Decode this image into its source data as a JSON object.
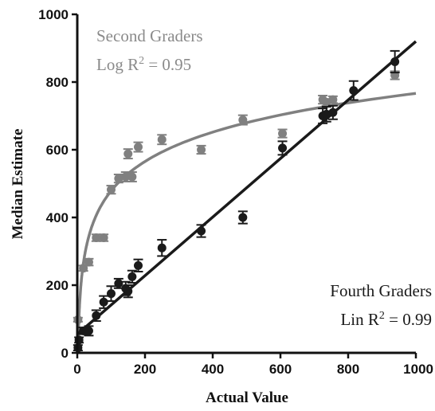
{
  "chart_data": {
    "type": "scatter",
    "title": "",
    "xlabel": "Actual Value",
    "ylabel": "Median Estimate",
    "xlim": [
      0,
      1000
    ],
    "ylim": [
      0,
      1000
    ],
    "x_ticks": [
      "0",
      "200",
      "400",
      "600",
      "800",
      "1000"
    ],
    "y_ticks": [
      "0",
      "200",
      "400",
      "600",
      "800",
      "1000"
    ],
    "grid": false,
    "annotations": {
      "second_title": "Second Graders",
      "second_fit_prefix": "Log R",
      "second_fit_sup": "2",
      "second_fit_value": " = 0.95",
      "fourth_title": "Fourth Graders",
      "fourth_fit_prefix": "Lin R",
      "fourth_fit_sup": "2",
      "fourth_fit_value": " = 0.99"
    },
    "series": [
      {
        "name": "Second Graders",
        "color": "#808080",
        "fit": "log",
        "fit_a": -97,
        "fit_b": 125,
        "points": [
          {
            "x": 2,
            "y": 98,
            "err": 6
          },
          {
            "x": 18,
            "y": 250,
            "err": 8
          },
          {
            "x": 34,
            "y": 268,
            "err": 10
          },
          {
            "x": 56,
            "y": 340,
            "err": 10
          },
          {
            "x": 78,
            "y": 340,
            "err": 10
          },
          {
            "x": 100,
            "y": 482,
            "err": 12
          },
          {
            "x": 122,
            "y": 515,
            "err": 12
          },
          {
            "x": 143,
            "y": 520,
            "err": 14
          },
          {
            "x": 150,
            "y": 588,
            "err": 14
          },
          {
            "x": 162,
            "y": 520,
            "err": 14
          },
          {
            "x": 180,
            "y": 608,
            "err": 14
          },
          {
            "x": 250,
            "y": 630,
            "err": 14
          },
          {
            "x": 366,
            "y": 600,
            "err": 12
          },
          {
            "x": 489,
            "y": 688,
            "err": 14
          },
          {
            "x": 606,
            "y": 648,
            "err": 12
          },
          {
            "x": 725,
            "y": 748,
            "err": 12
          },
          {
            "x": 736,
            "y": 740,
            "err": 10
          },
          {
            "x": 755,
            "y": 748,
            "err": 10
          },
          {
            "x": 938,
            "y": 820,
            "err": 12
          }
        ]
      },
      {
        "name": "Fourth Graders",
        "color": "#1a1a1a",
        "fit": "linear",
        "fit_m": 0.865,
        "fit_c": 55,
        "points": [
          {
            "x": 2,
            "y": 15,
            "err": 8
          },
          {
            "x": 5,
            "y": 38,
            "err": 8
          },
          {
            "x": 18,
            "y": 65,
            "err": 10
          },
          {
            "x": 34,
            "y": 65,
            "err": 14
          },
          {
            "x": 56,
            "y": 110,
            "err": 16
          },
          {
            "x": 78,
            "y": 150,
            "err": 18
          },
          {
            "x": 100,
            "y": 175,
            "err": 22
          },
          {
            "x": 122,
            "y": 205,
            "err": 14
          },
          {
            "x": 143,
            "y": 190,
            "err": 20
          },
          {
            "x": 150,
            "y": 182,
            "err": 18
          },
          {
            "x": 162,
            "y": 225,
            "err": 18
          },
          {
            "x": 180,
            "y": 258,
            "err": 18
          },
          {
            "x": 250,
            "y": 310,
            "err": 24
          },
          {
            "x": 366,
            "y": 360,
            "err": 18
          },
          {
            "x": 489,
            "y": 400,
            "err": 18
          },
          {
            "x": 606,
            "y": 605,
            "err": 20
          },
          {
            "x": 725,
            "y": 700,
            "err": 22
          },
          {
            "x": 736,
            "y": 705,
            "err": 22
          },
          {
            "x": 755,
            "y": 710,
            "err": 20
          },
          {
            "x": 816,
            "y": 775,
            "err": 28
          },
          {
            "x": 938,
            "y": 860,
            "err": 32
          }
        ]
      }
    ]
  }
}
